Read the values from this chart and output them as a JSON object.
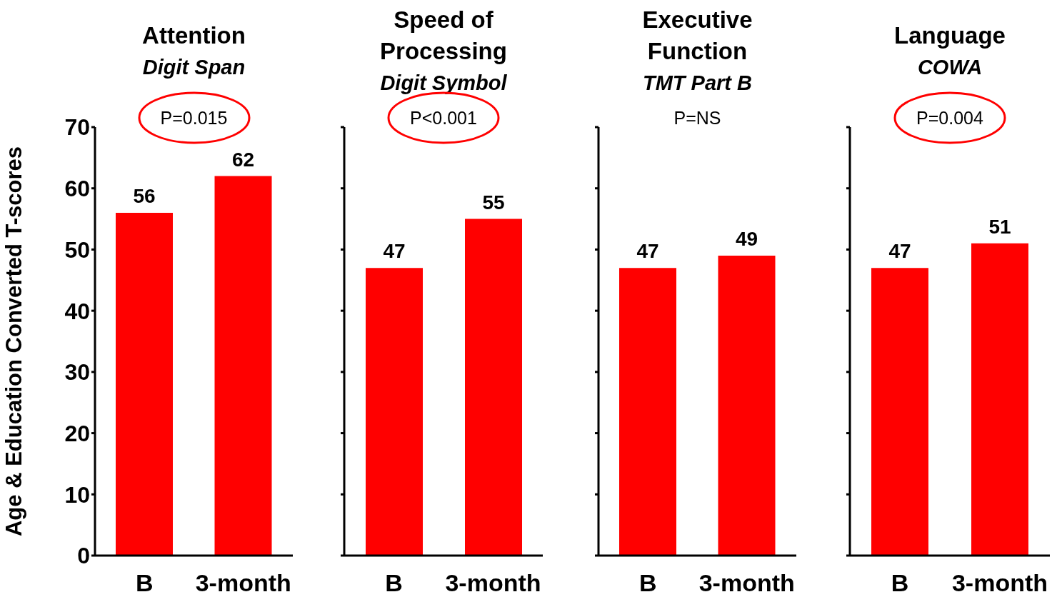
{
  "chart_data": [
    {
      "type": "bar",
      "title": "Attention",
      "subtitle": "Digit Span",
      "ylabel": "Age & Education Converted T-scores",
      "categories": [
        "B",
        "3-month"
      ],
      "values": [
        56,
        62
      ],
      "color": "#ff0000",
      "ylim": [
        0,
        70
      ],
      "yticks": [
        0,
        10,
        20,
        30,
        40,
        50,
        60,
        70
      ],
      "data_labels": true,
      "grid": false,
      "annotations": [
        "P=0.015"
      ]
    },
    {
      "type": "bar",
      "title": "Speed of Processing",
      "subtitle": "Digit Symbol",
      "categories": [
        "B",
        "3-month"
      ],
      "values": [
        47,
        55
      ],
      "color": "#ff0000",
      "ylim": [
        0,
        70
      ],
      "yticks": [
        0,
        10,
        20,
        30,
        40,
        50,
        60,
        70
      ],
      "data_labels": true,
      "grid": false,
      "tick_labels": "x",
      "annotations": [
        "P<0.001"
      ]
    },
    {
      "type": "bar",
      "title": "Executive Function",
      "subtitle": "TMT Part B",
      "categories": [
        "B",
        "3-month"
      ],
      "values": [
        47,
        49
      ],
      "color": "#ff0000",
      "ylim": [
        0,
        70
      ],
      "yticks": [
        0,
        10,
        20,
        30,
        40,
        50,
        60,
        70
      ],
      "data_labels": true,
      "grid": false,
      "tick_labels": "x",
      "annotations": [
        "P=NS"
      ]
    },
    {
      "type": "bar",
      "title": "Language",
      "subtitle": "COWA",
      "categories": [
        "B",
        "3-month"
      ],
      "values": [
        47,
        51
      ],
      "color": "#ff0000",
      "ylim": [
        0,
        70
      ],
      "yticks": [
        0,
        10,
        20,
        30,
        40,
        50,
        60,
        70
      ],
      "data_labels": true,
      "grid": false,
      "tick_labels": "x",
      "annotations": [
        "P=0.004"
      ]
    }
  ]
}
